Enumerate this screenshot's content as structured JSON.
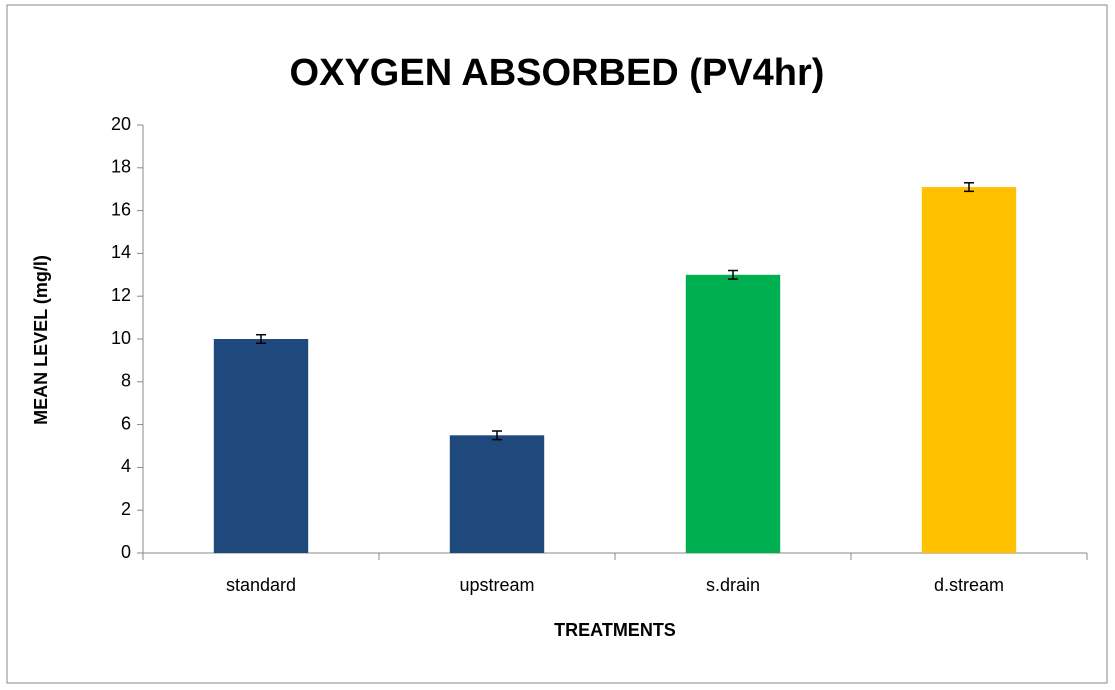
{
  "chart_data": {
    "type": "bar",
    "title": "OXYGEN ABSORBED (PV4hr)",
    "x_label": "TREATMENTS",
    "y_label": "MEAN LEVEL (mg/l)",
    "categories": [
      "standard",
      "upstream",
      "s.drain",
      "d.stream"
    ],
    "values": [
      10,
      5.5,
      13,
      17.1
    ],
    "errors": [
      0.2,
      0.2,
      0.2,
      0.2
    ],
    "colors": [
      "#1f497d",
      "#1f497d",
      "#00b050",
      "#ffc000"
    ],
    "ylim": [
      0,
      20
    ],
    "yticks": [
      0,
      2,
      4,
      6,
      8,
      10,
      12,
      14,
      16,
      18,
      20
    ],
    "grid": false
  }
}
